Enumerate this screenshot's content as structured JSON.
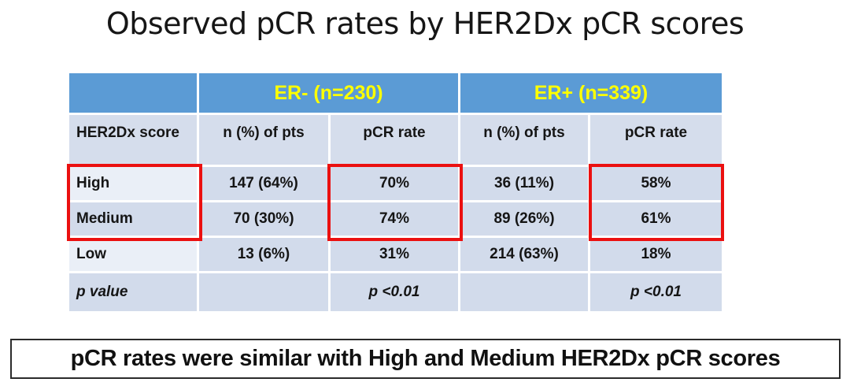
{
  "title": "Observed pCR rates by HER2Dx pCR scores",
  "table": {
    "group_headers": [
      {
        "label": "ER- (n=230)"
      },
      {
        "label": "ER+ (n=339)"
      }
    ],
    "column_headers": [
      "HER2Dx score",
      "n (%) of pts",
      "pCR rate",
      "n (%) of pts",
      "pCR rate"
    ],
    "rows": [
      {
        "label": "High",
        "cells": [
          "147 (64%)",
          "70%",
          "36 (11%)",
          "58%"
        ]
      },
      {
        "label": "Medium",
        "cells": [
          "70 (30%)",
          "74%",
          "89 (26%)",
          "61%"
        ]
      },
      {
        "label": "Low",
        "cells": [
          "13 (6%)",
          "31%",
          "214 (63%)",
          "18%"
        ]
      },
      {
        "label": "p value",
        "cells": [
          "",
          "p <0.01",
          "",
          "p <0.01"
        ]
      }
    ]
  },
  "footer": {
    "note": "pCR rates were similar with High and Medium HER2Dx pCR scores"
  },
  "highlights": {
    "description": "red boxes around High and Medium rows in the HER2Dx score, ER- pCR rate, and ER+ pCR rate columns",
    "color": "#EB1010"
  },
  "colors": {
    "header_blue": "#5B9BD5",
    "header_text_yellow": "#FFFF00",
    "label_row_blue": "#D5DDEC",
    "body_cell_blue": "#D2DBEB",
    "body_cell_light": "#EAEFF7",
    "highlight_red": "#EB1010",
    "footer_border": "#2b2b2b"
  },
  "chart_data": {
    "type": "table",
    "title": "Observed pCR rates by HER2Dx pCR scores",
    "columns": [
      "HER2Dx score",
      "ER- (n=230) n (%) of pts",
      "ER- (n=230) pCR rate",
      "ER+ (n=339) n (%) of pts",
      "ER+ (n=339) pCR rate"
    ],
    "rows": [
      [
        "High",
        "147 (64%)",
        "70%",
        "36 (11%)",
        "58%"
      ],
      [
        "Medium",
        "70 (30%)",
        "74%",
        "89 (26%)",
        "61%"
      ],
      [
        "Low",
        "13 (6%)",
        "31%",
        "214 (63%)",
        "18%"
      ],
      [
        "p value",
        "",
        "p <0.01",
        "",
        "p <0.01"
      ]
    ],
    "annotations": [
      "pCR rates were similar with High and Medium HER2Dx pCR scores"
    ]
  }
}
